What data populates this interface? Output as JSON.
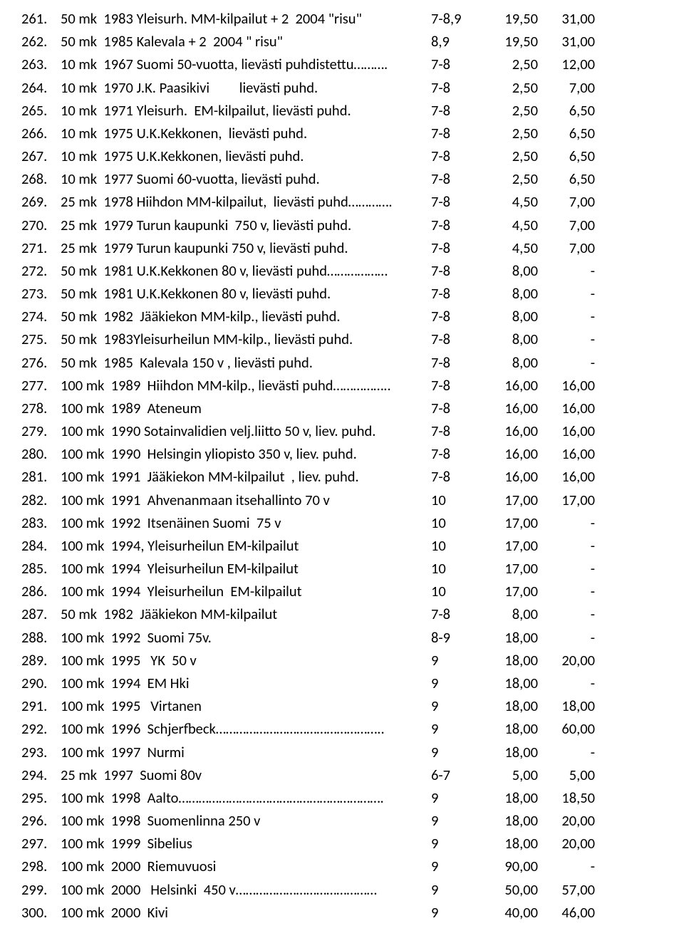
{
  "font_family": "Calibri",
  "font_size_pt": 15,
  "text_color": "#000000",
  "background_color": "#ffffff",
  "rows": [
    {
      "idx": "261.",
      "desc": "50 mk  1983 Yleisurh. MM-kilpailut + 2  2004 \"risu\"",
      "grade": "7-8,9",
      "p1": "19,50",
      "p2": "31,00"
    },
    {
      "idx": "262.",
      "desc": "50 mk  1985 Kalevala + 2  2004 \" risu\"",
      "grade": "8,9",
      "p1": "19,50",
      "p2": "31,00"
    },
    {
      "idx": "263.",
      "desc": "10 mk  1967 Suomi 50-vuotta, lievästi puhdistettu……….",
      "grade": "7-8",
      "p1": "2,50",
      "p2": "12,00"
    },
    {
      "idx": "264.",
      "desc": "10 mk  1970 J.K. Paasikivi         lievästi puhd.",
      "grade": "7-8",
      "p1": "2,50",
      "p2": "7,00"
    },
    {
      "idx": "265.",
      "desc": "10 mk  1971 Yleisurh.  EM-kilpailut, lievästi puhd.",
      "grade": "7-8",
      "p1": "2,50",
      "p2": "6,50"
    },
    {
      "idx": "266.",
      "desc": "10 mk  1975 U.K.Kekkonen,  lievästi puhd.",
      "grade": "7-8",
      "p1": "2,50",
      "p2": "6,50"
    },
    {
      "idx": "267.",
      "desc": "10 mk  1975 U.K.Kekkonen, lievästi puhd.",
      "grade": "7-8",
      "p1": "2,50",
      "p2": "6,50"
    },
    {
      "idx": "268.",
      "desc": "10 mk  1977 Suomi 60-vuotta, lievästi puhd.",
      "grade": "7-8",
      "p1": "2,50",
      "p2": "6,50"
    },
    {
      "idx": "269.",
      "desc": "25 mk  1978 Hiihdon MM-kilpailut,  lievästi puhd………….",
      "grade": "7-8",
      "p1": "4,50",
      "p2": "7,00"
    },
    {
      "idx": "270.",
      "desc": "25 mk  1979 Turun kaupunki  750 v, lievästi puhd.",
      "grade": "7-8",
      "p1": "4,50",
      "p2": "7,00"
    },
    {
      "idx": "271.",
      "desc": "25 mk  1979 Turun kaupunki 750 v, lievästi puhd.",
      "grade": "7-8",
      "p1": "4,50",
      "p2": "7,00"
    },
    {
      "idx": "272.",
      "desc": "50 mk  1981 U.K.Kekkonen 80 v, lievästi puhd………………",
      "grade": "7-8",
      "p1": "8,00",
      "p2": "-"
    },
    {
      "idx": "273.",
      "desc": "50 mk  1981 U.K.Kekkonen 80 v, lievästi puhd.",
      "grade": "7-8",
      "p1": "8,00",
      "p2": "-"
    },
    {
      "idx": "274.",
      "desc": "50 mk  1982  Jääkiekon MM-kilp., lievästi puhd.",
      "grade": "7-8",
      "p1": "8,00",
      "p2": "-"
    },
    {
      "idx": "275.",
      "desc": "50 mk  1983Yleisurheilun MM-kilp., lievästi puhd.",
      "grade": "7-8",
      "p1": "8,00",
      "p2": "-"
    },
    {
      "idx": "276.",
      "desc": "50 mk  1985  Kalevala 150 v , lievästi puhd.",
      "grade": "7-8",
      "p1": "8,00",
      "p2": "-"
    },
    {
      "idx": "277.",
      "desc": "100 mk  1989  Hiihdon MM-kilp., lievästi puhd……………..",
      "grade": "7-8",
      "p1": "16,00",
      "p2": "16,00"
    },
    {
      "idx": "278.",
      "desc": "100 mk  1989  Ateneum",
      "grade": "7-8",
      "p1": "16,00",
      "p2": "16,00"
    },
    {
      "idx": "279.",
      "desc": "100 mk  1990 Sotainvalidien velj.liitto 50 v, liev. puhd.",
      "grade": "7-8",
      "p1": "16,00",
      "p2": "16,00"
    },
    {
      "idx": "280.",
      "desc": "100 mk  1990  Helsingin yliopisto 350 v, liev. puhd.",
      "grade": "7-8",
      "p1": "16,00",
      "p2": "16,00"
    },
    {
      "idx": "281.",
      "desc": "100 mk  1991  Jääkiekon MM-kilpailut  , liev. puhd.",
      "grade": "7-8",
      "p1": "16,00",
      "p2": "16,00"
    },
    {
      "idx": "282.",
      "desc": "100 mk  1991  Ahvenanmaan itsehallinto 70 v",
      "grade": "10",
      "p1": "17,00",
      "p2": "17,00"
    },
    {
      "idx": "283.",
      "desc": "100 mk  1992  Itsenäinen Suomi  75 v",
      "grade": "10",
      "p1": "17,00",
      "p2": "-"
    },
    {
      "idx": "284.",
      "desc": "100 mk  1994, Yleisurheilun EM-kilpailut",
      "grade": "10",
      "p1": "17,00",
      "p2": "-"
    },
    {
      "idx": "285.",
      "desc": "100 mk  1994  Yleisurheilun EM-kilpailut",
      "grade": "10",
      "p1": "17,00",
      "p2": "-"
    },
    {
      "idx": "286.",
      "desc": "100 mk  1994  Yleisurheilun  EM-kilpailut",
      "grade": "10",
      "p1": "17,00",
      "p2": "-"
    },
    {
      "idx": "287.",
      "desc": "50 mk  1982  Jääkiekon MM-kilpailut",
      "grade": "7-8",
      "p1": "8,00",
      "p2": "-"
    },
    {
      "idx": "288.",
      "desc": "100 mk  1992  Suomi 75v.",
      "grade": "8-9",
      "p1": "18,00",
      "p2": "-"
    },
    {
      "idx": "289.",
      "desc": "100 mk  1995   YK  50 v",
      "grade": "9",
      "p1": "18,00",
      "p2": "20,00"
    },
    {
      "idx": "290.",
      "desc": "100 mk  1994  EM Hki",
      "grade": "9",
      "p1": "18,00",
      "p2": "-"
    },
    {
      "idx": "291.",
      "desc": "100 mk  1995   Virtanen",
      "grade": "9",
      "p1": "18,00",
      "p2": "18,00"
    },
    {
      "idx": "292.",
      "desc": "100 mk  1996  Schjerfbeck…………………………………………..",
      "grade": "9",
      "p1": "18,00",
      "p2": "60,00"
    },
    {
      "idx": "293.",
      "desc": "100 mk  1997  Nurmi",
      "grade": "9",
      "p1": "18,00",
      "p2": "-"
    },
    {
      "idx": "294.",
      "desc": "25 mk  1997  Suomi 80v",
      "grade": "6-7",
      "p1": "5,00",
      "p2": "5,00"
    },
    {
      "idx": "295.",
      "desc": "100 mk  1998  Aalto…………………………………………………….",
      "grade": "9",
      "p1": "18,00",
      "p2": "18,50"
    },
    {
      "idx": "296.",
      "desc": "100 mk  1998  Suomenlinna 250 v",
      "grade": "9",
      "p1": "18,00",
      "p2": "20,00"
    },
    {
      "idx": "297.",
      "desc": "100 mk  1999  Sibelius",
      "grade": "9",
      "p1": "18,00",
      "p2": "20,00"
    },
    {
      "idx": "298.",
      "desc": "100 mk  2000  Riemuvuosi",
      "grade": "9",
      "p1": "90,00",
      "p2": "-"
    },
    {
      "idx": "299.",
      "desc": "100 mk  2000   Helsinki  450 v……………………………………",
      "grade": "9",
      "p1": "50,00",
      "p2": "57,00"
    },
    {
      "idx": "300.",
      "desc": "100 mk  2000  Kivi",
      "grade": "9",
      "p1": "40,00",
      "p2": "46,00"
    }
  ]
}
